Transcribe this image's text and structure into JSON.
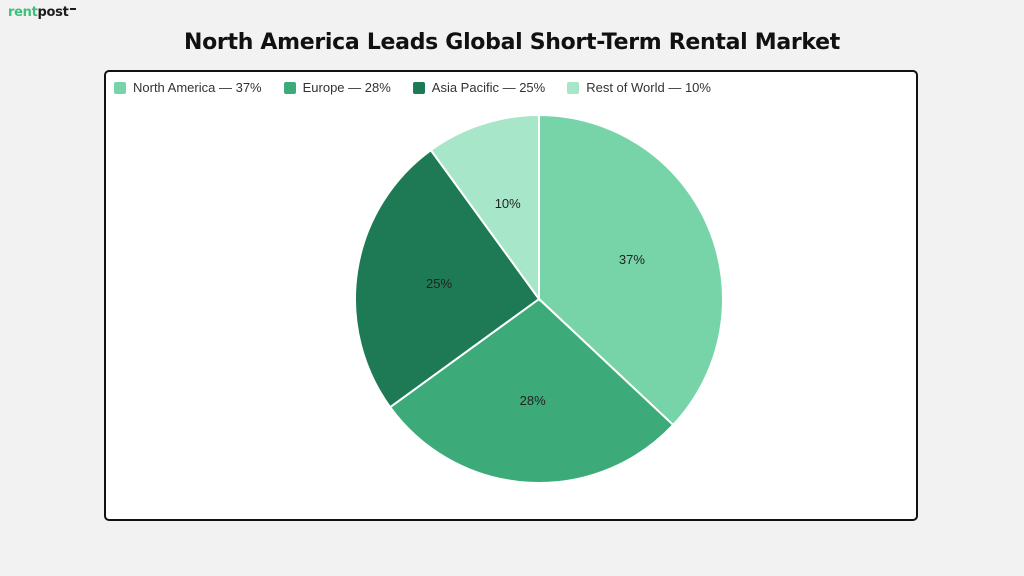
{
  "logo": {
    "part1": "rent",
    "part2": "post"
  },
  "title": "North America Leads Global Short-Term Rental Market",
  "legend": [
    {
      "label": "North America — 37%",
      "color": "#76d4a8"
    },
    {
      "label": "Europe — 28%",
      "color": "#3daa7a"
    },
    {
      "label": "Asia Pacific — 25%",
      "color": "#1e7a55"
    },
    {
      "label": "Rest of World — 10%",
      "color": "#a8e6c9"
    }
  ],
  "chart_data": {
    "type": "pie",
    "title": "North America Leads Global Short-Term Rental Market",
    "categories": [
      "North America",
      "Europe",
      "Asia Pacific",
      "Rest of World"
    ],
    "values": [
      37,
      28,
      25,
      10
    ],
    "value_labels": [
      "37%",
      "28%",
      "25%",
      "10%"
    ],
    "colors": [
      "#76d4a8",
      "#3daa7a",
      "#1e7a55",
      "#a8e6c9"
    ],
    "start_angle": "top, clockwise",
    "legend_position": "top-left"
  }
}
